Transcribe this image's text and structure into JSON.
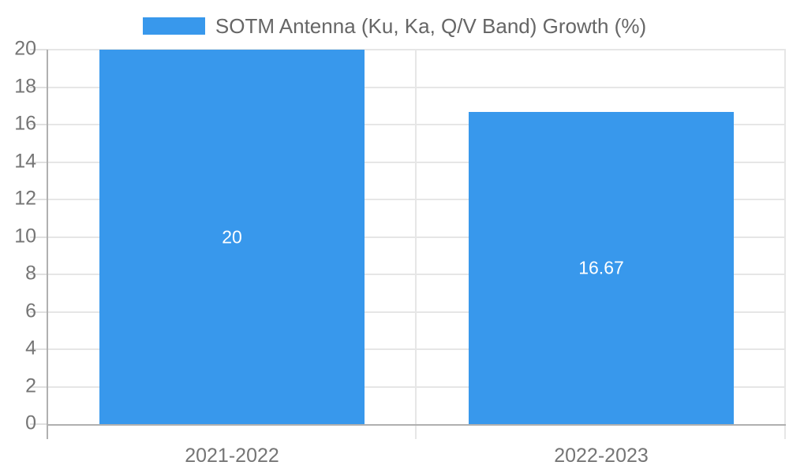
{
  "legend": {
    "label": "SOTM Antenna (Ku, Ka, Q/V Band) Growth (%)"
  },
  "chart_data": {
    "type": "bar",
    "title": "SOTM Antenna (Ku, Ka, Q/V Band) Growth (%)",
    "categories": [
      "2021-2022",
      "2022-2023"
    ],
    "values": [
      20,
      16.67
    ],
    "data_labels": [
      "20",
      "16.67"
    ],
    "xlabel": "",
    "ylabel": "",
    "ylim": [
      0,
      20
    ],
    "yticks": [
      0,
      2,
      4,
      6,
      8,
      10,
      12,
      14,
      16,
      18,
      20
    ],
    "grid": true,
    "legend_position": "top"
  },
  "colors": {
    "bar": "#3898ec",
    "gridline": "#e6e6e6",
    "tick_dash": "#e0e0e0",
    "axis": "#b0b0b0",
    "tick_label": "#757575",
    "legend_text": "#666666",
    "data_label": "#ffffff",
    "background": "#ffffff"
  }
}
